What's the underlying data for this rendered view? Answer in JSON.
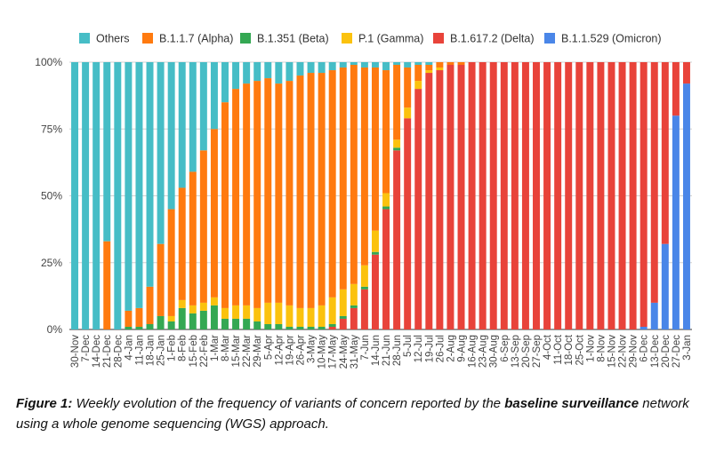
{
  "chart_data": {
    "type": "bar",
    "stacked": true,
    "ylim": [
      0,
      100
    ],
    "yticks": [
      0,
      25,
      50,
      75,
      100
    ],
    "ytick_labels": [
      "0%",
      "25%",
      "50%",
      "75%",
      "100%"
    ],
    "legend_position": "top",
    "grid": true,
    "categories": [
      "30-Nov",
      "7-Dec",
      "14-Dec",
      "21-Dec",
      "28-Dec",
      "4-Jan",
      "11-Jan",
      "18-Jan",
      "25-Jan",
      "1-Feb",
      "8-Feb",
      "15-Feb",
      "22-Feb",
      "1-Mar",
      "8-Mar",
      "15-Mar",
      "22-Mar",
      "29-Mar",
      "5-Apr",
      "12-Apr",
      "19-Apr",
      "26-Apr",
      "3-May",
      "10-May",
      "17-May",
      "24-May",
      "31-May",
      "7-Jun",
      "14-Jun",
      "21-Jun",
      "28-Jun",
      "5-Jul",
      "12-Jul",
      "19-Jul",
      "26-Jul",
      "2-Aug",
      "9-Aug",
      "16-Aug",
      "23-Aug",
      "30-Aug",
      "6-Sep",
      "13-Sep",
      "20-Sep",
      "27-Sep",
      "4-Oct",
      "11-Oct",
      "18-Oct",
      "25-Oct",
      "1-Nov",
      "8-Nov",
      "15-Nov",
      "22-Nov",
      "29-Nov",
      "6-Dec",
      "13-Dec",
      "20-Dec",
      "27-Dec",
      "3-Jan"
    ],
    "series": [
      {
        "name": "B.1.1.529 (Omicron)",
        "color": "#4a86e8",
        "values": [
          0,
          0,
          0,
          0,
          0,
          0,
          0,
          0,
          0,
          0,
          0,
          0,
          0,
          0,
          0,
          0,
          0,
          0,
          0,
          0,
          0,
          0,
          0,
          0,
          0,
          0,
          0,
          0,
          0,
          0,
          0,
          0,
          0,
          0,
          0,
          0,
          0,
          0,
          0,
          0,
          0,
          0,
          0,
          0,
          0,
          0,
          0,
          0,
          0,
          0,
          0,
          0,
          0,
          1,
          10,
          32,
          80,
          92
        ]
      },
      {
        "name": "B.1.617.2 (Delta)",
        "color": "#e8433a",
        "values": [
          0,
          0,
          0,
          0,
          0,
          0,
          0,
          0,
          0,
          0,
          0,
          0,
          0,
          0,
          0,
          0,
          0,
          0,
          0,
          0,
          0,
          0,
          0,
          0,
          1,
          4,
          8,
          15,
          28,
          45,
          67,
          79,
          90,
          96,
          97,
          99,
          99,
          100,
          100,
          100,
          100,
          100,
          100,
          100,
          100,
          100,
          100,
          100,
          100,
          100,
          100,
          100,
          100,
          99,
          90,
          68,
          20,
          8
        ]
      },
      {
        "name": "B.1.351 (Beta)",
        "color": "#34a853",
        "values": [
          0,
          0,
          0,
          0,
          0,
          1,
          1,
          2,
          5,
          3,
          8,
          6,
          7,
          9,
          4,
          4,
          4,
          3,
          2,
          2,
          1,
          1,
          1,
          1,
          1,
          1,
          1,
          1,
          1,
          1,
          1,
          0,
          0,
          0,
          0,
          0,
          0,
          0,
          0,
          0,
          0,
          0,
          0,
          0,
          0,
          0,
          0,
          0,
          0,
          0,
          0,
          0,
          0,
          0,
          0,
          0,
          0,
          0
        ]
      },
      {
        "name": "P.1 (Gamma)",
        "color": "#fbc20e",
        "values": [
          0,
          0,
          0,
          0,
          0,
          0,
          0,
          0,
          0,
          2,
          3,
          3,
          3,
          3,
          4,
          5,
          5,
          5,
          8,
          8,
          8,
          7,
          7,
          8,
          10,
          10,
          8,
          8,
          8,
          5,
          3,
          4,
          3,
          1,
          1,
          0,
          0,
          0,
          0,
          0,
          0,
          0,
          0,
          0,
          0,
          0,
          0,
          0,
          0,
          0,
          0,
          0,
          0,
          0,
          0,
          0,
          0,
          0
        ]
      },
      {
        "name": "B.1.1.7 (Alpha)",
        "color": "#ff7a0f",
        "values": [
          0,
          0,
          0,
          33,
          0,
          6,
          7,
          14,
          27,
          40,
          42,
          50,
          57,
          63,
          77,
          81,
          83,
          85,
          84,
          82,
          84,
          87,
          88,
          87,
          85,
          83,
          82,
          74,
          61,
          46,
          28,
          15,
          6,
          2,
          2,
          1,
          1,
          0,
          0,
          0,
          0,
          0,
          0,
          0,
          0,
          0,
          0,
          0,
          0,
          0,
          0,
          0,
          0,
          0,
          0,
          0,
          0,
          0
        ]
      },
      {
        "name": "Others",
        "color": "#46bdc6",
        "values": [
          100,
          100,
          100,
          67,
          100,
          93,
          92,
          84,
          68,
          55,
          47,
          41,
          33,
          25,
          15,
          10,
          8,
          7,
          6,
          8,
          7,
          5,
          4,
          4,
          3,
          2,
          1,
          2,
          2,
          3,
          1,
          2,
          1,
          1,
          0,
          0,
          0,
          0,
          0,
          0,
          0,
          0,
          0,
          0,
          0,
          0,
          0,
          0,
          0,
          0,
          0,
          0,
          0,
          0,
          0,
          0,
          0,
          0
        ]
      }
    ],
    "legend_order": [
      "Others",
      "B.1.1.7 (Alpha)",
      "B.1.351 (Beta)",
      "P.1 (Gamma)",
      "B.1.617.2 (Delta)",
      "B.1.1.529 (Omicron)"
    ]
  },
  "caption": {
    "label": "Figure 1:",
    "text_before": " Weekly evolution of the frequency of variants of concern reported by the ",
    "bold_text": "baseline surveillance",
    "text_after": " network using a whole genome sequencing (WGS) approach."
  }
}
